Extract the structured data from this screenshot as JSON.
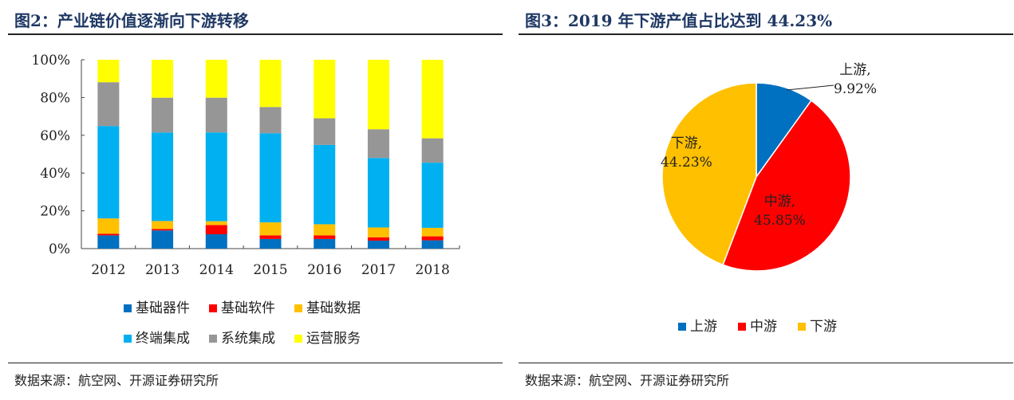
{
  "left": {
    "title": "图2：产业链价值逐渐向下游转移",
    "source": "数据来源：航空网、开源证券研究所"
  },
  "right": {
    "title": "图3：2019 年下游产值占比达到 44.23%",
    "source": "数据来源：航空网、开源证券研究所"
  },
  "chart_data": [
    {
      "type": "bar",
      "stacked": true,
      "title": "产业链价值逐渐向下游转移",
      "categories": [
        "2012",
        "2013",
        "2014",
        "2015",
        "2016",
        "2017",
        "2018"
      ],
      "yticks": [
        "0%",
        "20%",
        "40%",
        "60%",
        "80%",
        "100%"
      ],
      "ylim": [
        0,
        100
      ],
      "series": [
        {
          "name": "基础器件",
          "color": "#0070c0",
          "values": [
            7.0,
            9.6,
            7.6,
            5.1,
            5.1,
            4.2,
            4.4
          ]
        },
        {
          "name": "基础软件",
          "color": "#ff0000",
          "values": [
            0.9,
            0.8,
            4.9,
            1.9,
            1.9,
            1.8,
            2.1
          ]
        },
        {
          "name": "基础数据",
          "color": "#ffc000",
          "values": [
            8.1,
            4.2,
            2.0,
            6.9,
            5.9,
            5.2,
            4.5
          ]
        },
        {
          "name": "终端集成",
          "color": "#00b0f0",
          "values": [
            48.9,
            46.9,
            47.0,
            47.2,
            42.0,
            36.8,
            34.5
          ]
        },
        {
          "name": "系统集成",
          "color": "#969696",
          "values": [
            23.2,
            18.4,
            18.4,
            13.9,
            14.1,
            15.2,
            12.9
          ]
        },
        {
          "name": "运营服务",
          "color": "#ffff00",
          "values": [
            11.9,
            20.1,
            20.1,
            25.0,
            31.0,
            36.8,
            41.6
          ]
        }
      ]
    },
    {
      "type": "pie",
      "title": "2019 年下游产值占比达到 44.23%",
      "slices": [
        {
          "name": "上游",
          "value": 9.92,
          "label": "9.92%",
          "color": "#0070c0"
        },
        {
          "name": "中游",
          "value": 45.85,
          "label": "45.85%",
          "color": "#ff0000"
        },
        {
          "name": "下游",
          "value": 44.23,
          "label": "44.23%",
          "color": "#ffc000"
        }
      ]
    }
  ]
}
